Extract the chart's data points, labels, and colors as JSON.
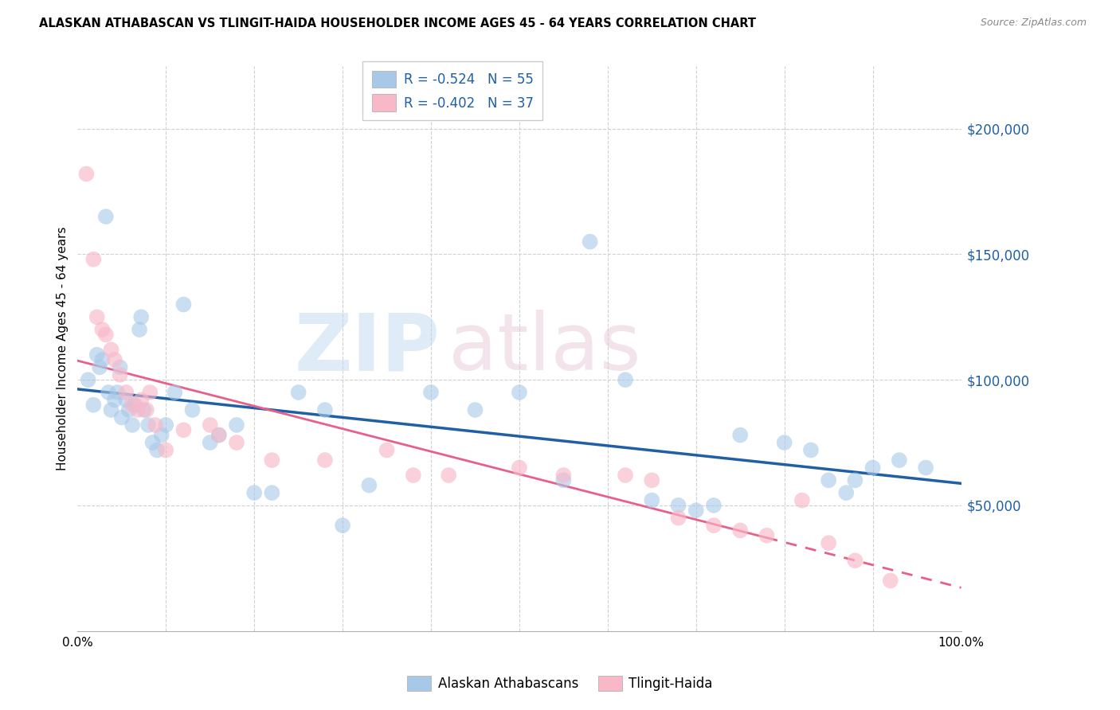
{
  "title": "ALASKAN ATHABASCAN VS TLINGIT-HAIDA HOUSEHOLDER INCOME AGES 45 - 64 YEARS CORRELATION CHART",
  "source": "Source: ZipAtlas.com",
  "ylabel": "Householder Income Ages 45 - 64 years",
  "yaxis_labels": [
    "$200,000",
    "$150,000",
    "$100,000",
    "$50,000"
  ],
  "yaxis_values": [
    200000,
    150000,
    100000,
    50000
  ],
  "ylim": [
    0,
    225000
  ],
  "xlim": [
    0.0,
    1.0
  ],
  "R1": -0.524,
  "N1": 55,
  "R2": -0.402,
  "N2": 37,
  "blue_fill": "#a8c8e8",
  "pink_fill": "#f8b8c8",
  "blue_line": "#1f5fa6",
  "pink_line": "#e8608a",
  "label1": "Alaskan Athabascans",
  "label2": "Tlingit-Haida",
  "blue_x": [
    0.012,
    0.018,
    0.022,
    0.025,
    0.028,
    0.032,
    0.035,
    0.038,
    0.042,
    0.045,
    0.048,
    0.05,
    0.055,
    0.058,
    0.062,
    0.065,
    0.07,
    0.072,
    0.075,
    0.08,
    0.085,
    0.09,
    0.095,
    0.1,
    0.11,
    0.12,
    0.13,
    0.15,
    0.16,
    0.18,
    0.2,
    0.22,
    0.25,
    0.28,
    0.3,
    0.33,
    0.4,
    0.45,
    0.5,
    0.55,
    0.58,
    0.62,
    0.65,
    0.68,
    0.7,
    0.72,
    0.75,
    0.8,
    0.83,
    0.85,
    0.87,
    0.88,
    0.9,
    0.93,
    0.96
  ],
  "blue_y": [
    100000,
    90000,
    110000,
    105000,
    108000,
    165000,
    95000,
    88000,
    92000,
    95000,
    105000,
    85000,
    92000,
    88000,
    82000,
    90000,
    120000,
    125000,
    88000,
    82000,
    75000,
    72000,
    78000,
    82000,
    95000,
    130000,
    88000,
    75000,
    78000,
    82000,
    55000,
    55000,
    95000,
    88000,
    42000,
    58000,
    95000,
    88000,
    95000,
    60000,
    155000,
    100000,
    52000,
    50000,
    48000,
    50000,
    78000,
    75000,
    72000,
    60000,
    55000,
    60000,
    65000,
    68000,
    65000
  ],
  "pink_x": [
    0.01,
    0.018,
    0.022,
    0.028,
    0.032,
    0.038,
    0.042,
    0.048,
    0.055,
    0.062,
    0.068,
    0.072,
    0.078,
    0.082,
    0.088,
    0.1,
    0.12,
    0.15,
    0.16,
    0.18,
    0.22,
    0.28,
    0.35,
    0.38,
    0.42,
    0.5,
    0.55,
    0.62,
    0.65,
    0.68,
    0.72,
    0.75,
    0.78,
    0.82,
    0.85,
    0.88,
    0.92
  ],
  "pink_y": [
    182000,
    148000,
    125000,
    120000,
    118000,
    112000,
    108000,
    102000,
    95000,
    90000,
    88000,
    92000,
    88000,
    95000,
    82000,
    72000,
    80000,
    82000,
    78000,
    75000,
    68000,
    68000,
    72000,
    62000,
    62000,
    65000,
    62000,
    62000,
    60000,
    45000,
    42000,
    40000,
    38000,
    52000,
    35000,
    28000,
    20000
  ]
}
